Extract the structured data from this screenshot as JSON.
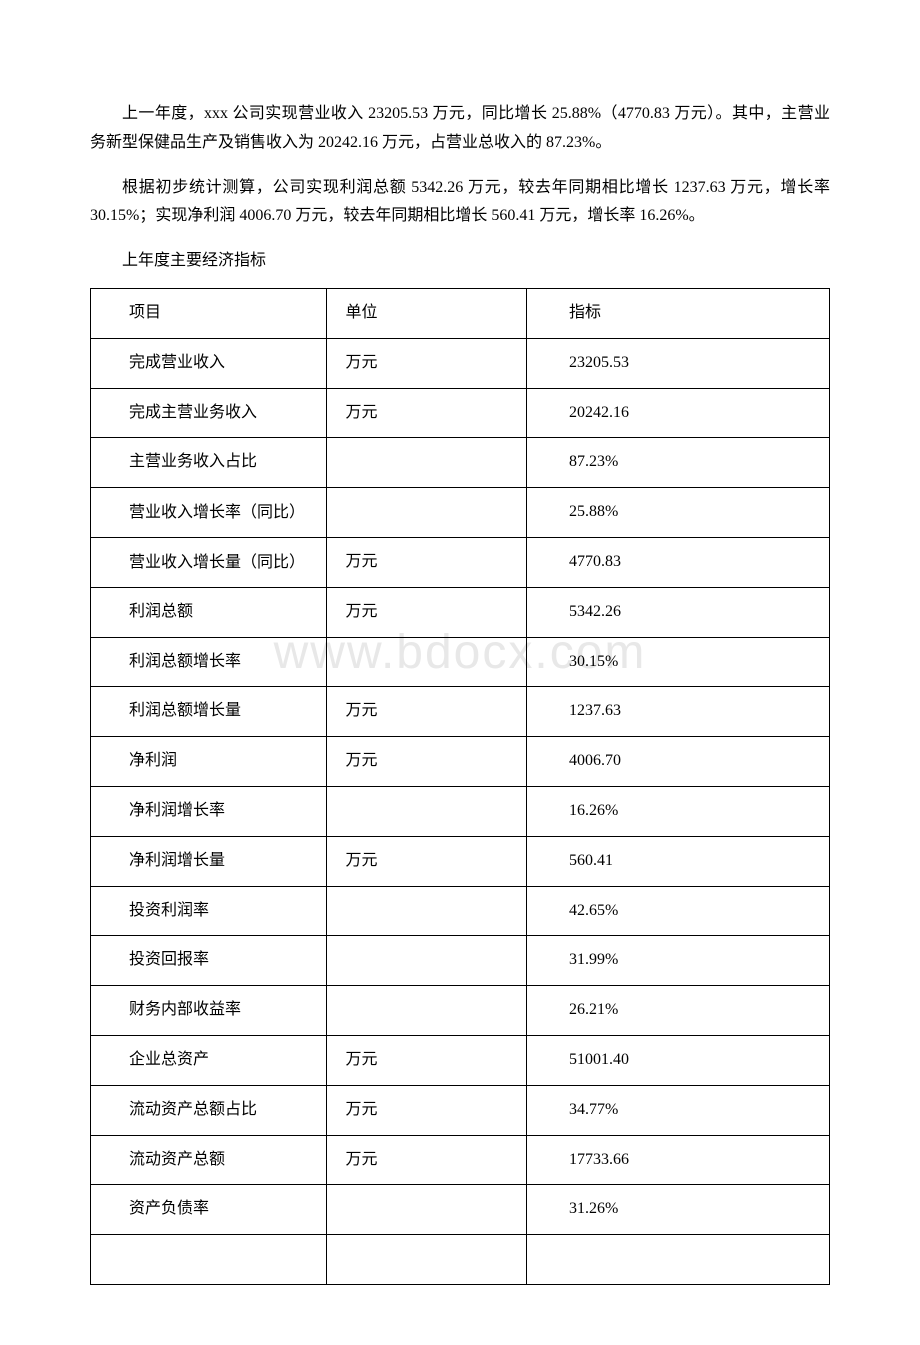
{
  "paragraphs": {
    "p1": "上一年度，xxx 公司实现营业收入 23205.53 万元，同比增长 25.88%（4770.83 万元）。其中，主营业务新型保健品生产及销售收入为 20242.16 万元，占营业总收入的 87.23%。",
    "p2": "根据初步统计测算，公司实现利润总额 5342.26 万元，较去年同期相比增长 1237.63 万元，增长率 30.15%；实现净利润 4006.70 万元，较去年同期相比增长 560.41 万元，增长率 16.26%。",
    "section_title": "上年度主要经济指标"
  },
  "watermark": "www.bdocx.com",
  "table": {
    "headers": {
      "item": "项目",
      "unit": "单位",
      "value": "指标"
    },
    "rows": [
      {
        "item": "完成营业收入",
        "unit": "万元",
        "value": "23205.53"
      },
      {
        "item": "完成主营业务收入",
        "unit": "万元",
        "value": "20242.16"
      },
      {
        "item": "主营业务收入占比",
        "unit": "",
        "value": "87.23%"
      },
      {
        "item": "营业收入增长率（同比）",
        "unit": "",
        "value": "25.88%"
      },
      {
        "item": "营业收入增长量（同比）",
        "unit": "万元",
        "value": "4770.83"
      },
      {
        "item": "利润总额",
        "unit": "万元",
        "value": "5342.26"
      },
      {
        "item": "利润总额增长率",
        "unit": "",
        "value": "30.15%"
      },
      {
        "item": "利润总额增长量",
        "unit": "万元",
        "value": "1237.63"
      },
      {
        "item": "净利润",
        "unit": "万元",
        "value": "4006.70"
      },
      {
        "item": "净利润增长率",
        "unit": "",
        "value": "16.26%"
      },
      {
        "item": "净利润增长量",
        "unit": "万元",
        "value": "560.41"
      },
      {
        "item": "投资利润率",
        "unit": "",
        "value": "42.65%"
      },
      {
        "item": "投资回报率",
        "unit": "",
        "value": "31.99%"
      },
      {
        "item": "财务内部收益率",
        "unit": "",
        "value": "26.21%"
      },
      {
        "item": "企业总资产",
        "unit": "万元",
        "value": "51001.40"
      },
      {
        "item": "流动资产总额占比",
        "unit": "万元",
        "value": "34.77%"
      },
      {
        "item": "流动资产总额",
        "unit": "万元",
        "value": "17733.66"
      },
      {
        "item": "资产负债率",
        "unit": "",
        "value": "31.26%"
      },
      {
        "item": "",
        "unit": "",
        "value": ""
      }
    ]
  }
}
